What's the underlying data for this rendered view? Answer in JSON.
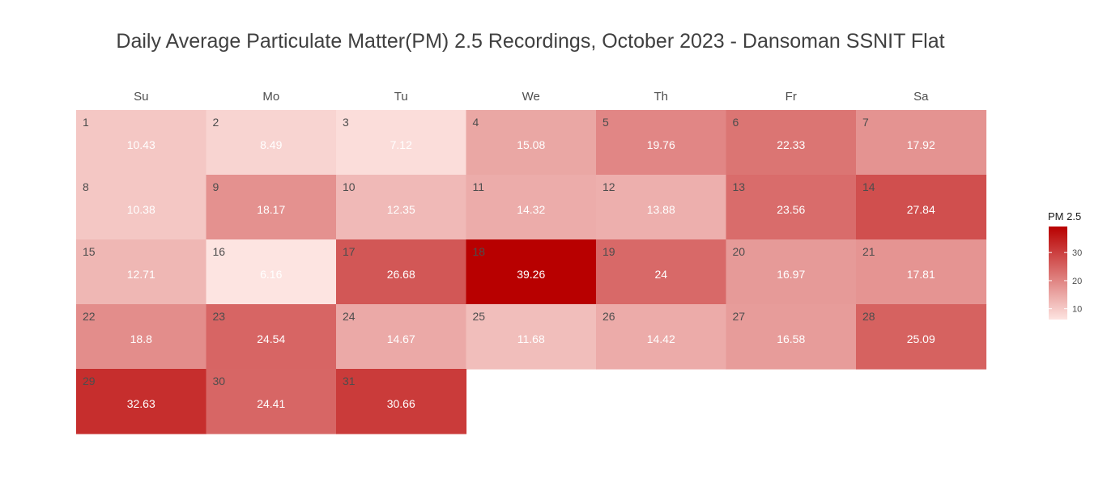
{
  "chart_data": {
    "type": "heatmap",
    "title": "Daily Average Particulate Matter(PM) 2.5 Recordings, October 2023 - Dansoman SSNIT Flat",
    "weekdays": [
      "Su",
      "Mo",
      "Tu",
      "We",
      "Th",
      "Fr",
      "Sa"
    ],
    "first_weekday_index": 0,
    "days": [
      1,
      2,
      3,
      4,
      5,
      6,
      7,
      8,
      9,
      10,
      11,
      12,
      13,
      14,
      15,
      16,
      17,
      18,
      19,
      20,
      21,
      22,
      23,
      24,
      25,
      26,
      27,
      28,
      29,
      30,
      31
    ],
    "values": [
      "10.43",
      "8.49",
      "7.12",
      "15.08",
      "19.76",
      "22.33",
      "17.92",
      "10.38",
      "18.17",
      "12.35",
      "14.32",
      "13.88",
      "23.56",
      "27.84",
      "12.71",
      "6.16",
      "26.68",
      "39.26",
      "24",
      "16.97",
      "17.81",
      "18.8",
      "24.54",
      "14.67",
      "11.68",
      "14.42",
      "16.58",
      "25.09",
      "32.63",
      "24.41",
      "30.66"
    ],
    "legend": {
      "title": "PM 2.5",
      "ticks": [
        10,
        20,
        30
      ],
      "range": [
        6.16,
        39.26
      ]
    },
    "colors": {
      "low": "#fde4e1",
      "high": "#b80000"
    },
    "grid": false
  }
}
